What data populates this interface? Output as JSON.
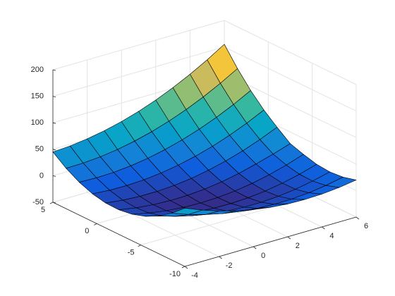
{
  "chart_data": {
    "type": "surface",
    "colormap": "parula",
    "edge_color": "#000000",
    "grid": true,
    "x": [
      -4,
      -3,
      -2,
      -1,
      0,
      1,
      2,
      3,
      4,
      5,
      6
    ],
    "y": [
      -10,
      -8.5,
      -7,
      -5.5,
      -4,
      -2.5,
      -1,
      0.5,
      2,
      3.5,
      5
    ],
    "z": [
      [
        60,
        47,
        36,
        27,
        20,
        15,
        12,
        11,
        12,
        15,
        20
      ],
      [
        38.25,
        26.75,
        17.25,
        9.75,
        4.25,
        0.75,
        -0.75,
        -0.25,
        2.25,
        6.75,
        13.25
      ],
      [
        21,
        11,
        3,
        -3,
        -7,
        -9,
        -9,
        -7,
        -3,
        3,
        11
      ],
      [
        8.25,
        -0.25,
        -6.75,
        -11.25,
        -13.75,
        -14.25,
        -12.75,
        -9.25,
        -3.75,
        3.75,
        13.25
      ],
      [
        0,
        -7,
        -12,
        -15,
        -16,
        -15,
        -12,
        -7,
        0,
        9,
        20
      ],
      [
        -3.75,
        -9.25,
        -12.75,
        -14.25,
        -13.75,
        -11.25,
        -6.75,
        -0.25,
        8.25,
        17.75,
        28.25
      ],
      [
        -3,
        -7,
        -9,
        -9,
        -7,
        -3,
        3,
        11,
        21,
        33,
        47
      ],
      [
        2.25,
        -0.25,
        -0.75,
        0.75,
        4.25,
        9.75,
        17.25,
        26.75,
        38.25,
        51.75,
        67.25
      ],
      [
        12,
        11,
        12,
        15,
        20,
        27,
        36,
        47,
        60,
        75,
        92
      ],
      [
        26.25,
        26.75,
        29.25,
        33.75,
        40.25,
        48.75,
        59.25,
        71.75,
        86.25,
        102.75,
        121.25
      ],
      [
        45,
        47,
        51,
        57,
        65,
        75,
        87,
        101,
        117,
        135,
        155
      ]
    ],
    "xlim": [
      -4,
      6
    ],
    "xticks": [
      -4,
      -2,
      0,
      2,
      4,
      6
    ],
    "ylim": [
      -10,
      5
    ],
    "yticks": [
      -10,
      -5,
      0,
      5
    ],
    "zlim": [
      -50,
      200
    ],
    "zticks": [
      -50,
      0,
      50,
      100,
      150,
      200
    ]
  }
}
